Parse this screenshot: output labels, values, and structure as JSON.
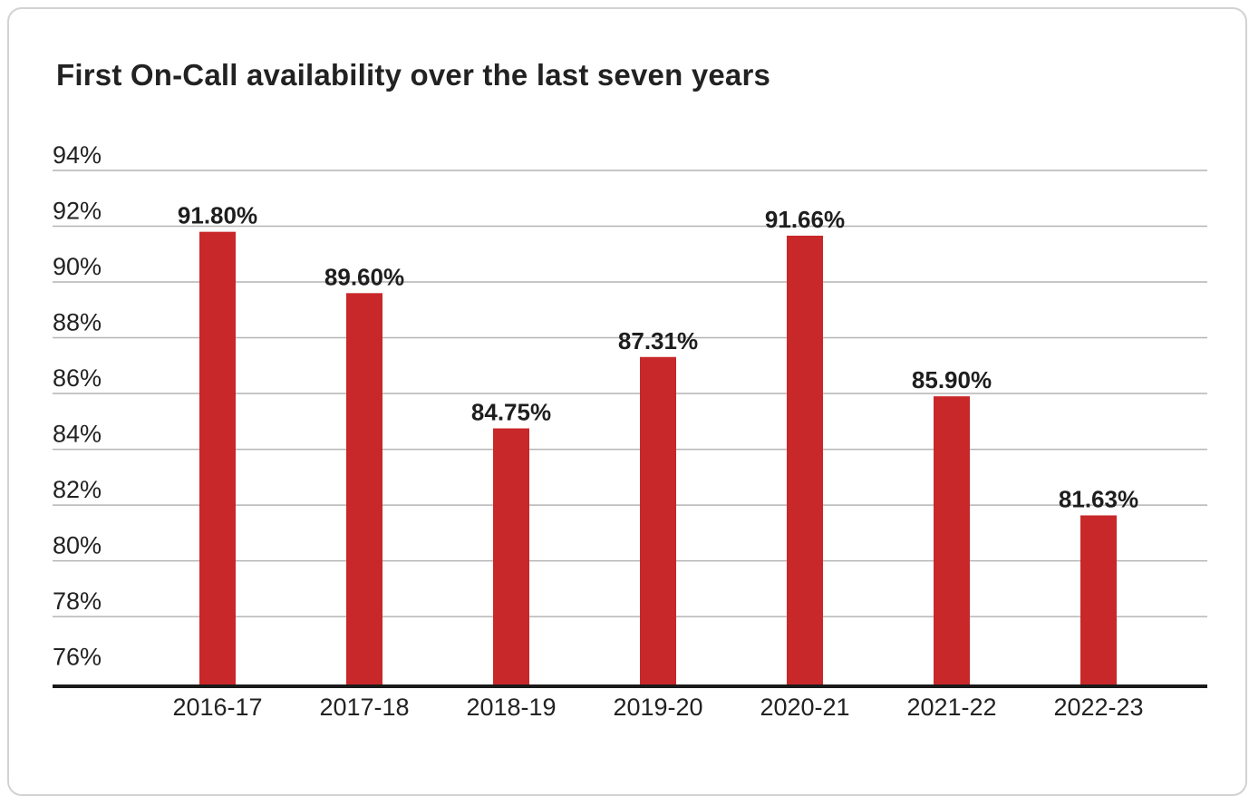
{
  "chart_data": {
    "type": "bar",
    "title": "First On-Call availability over the last seven years",
    "xlabel": "",
    "ylabel": "",
    "categories": [
      "2016-17",
      "2017-18",
      "2018-19",
      "2019-20",
      "2020-21",
      "2021-22",
      "2022-23"
    ],
    "values": [
      91.8,
      89.6,
      84.75,
      87.31,
      91.66,
      85.9,
      81.63
    ],
    "value_labels": [
      "91.80%",
      "89.60%",
      "84.75%",
      "87.31%",
      "91.66%",
      "85.90%",
      "81.63%"
    ],
    "ylim": [
      75.5,
      94
    ],
    "y_ticks": [
      76,
      78,
      80,
      82,
      84,
      86,
      88,
      90,
      92,
      94
    ],
    "y_tick_labels": [
      "76%",
      "78%",
      "80%",
      "82%",
      "84%",
      "86%",
      "88%",
      "90%",
      "92%",
      "94%"
    ],
    "grid": true,
    "legend": "none",
    "colors": {
      "bar": "#c8282a",
      "grid": "#b4b4b4",
      "axis": "#1a1a1a",
      "text": "#222222"
    }
  }
}
